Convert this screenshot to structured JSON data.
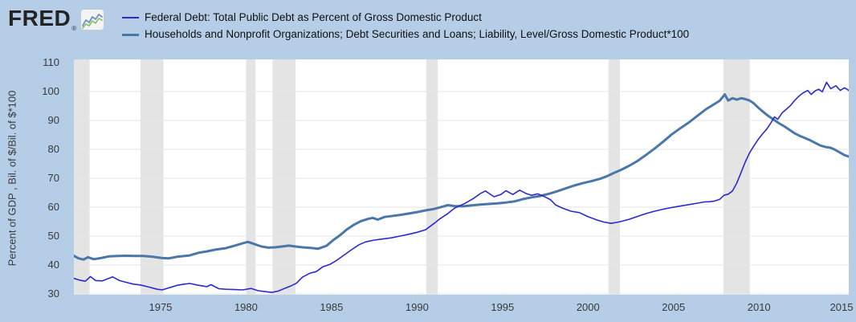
{
  "header": {
    "logo_text": "FRED",
    "registered_mark": "®"
  },
  "legend": [
    {
      "label": "Federal Debt: Total Public Debt as Percent of Gross Domestic Product"
    },
    {
      "label": "Households and Nonprofit Organizations; Debt Securities and Loans; Liability, Level/Gross Domestic Product*100"
    }
  ],
  "y_axis": {
    "title": "Percent of GDP , Bil. of $/Bil. of $*100",
    "ticks": [
      110,
      100,
      90,
      80,
      70,
      60,
      50,
      40,
      30
    ]
  },
  "x_axis": {
    "ticks": [
      1975,
      1980,
      1985,
      1990,
      1995,
      2000,
      2005,
      2010,
      2015
    ]
  },
  "colors": {
    "background": "#b5cde6",
    "plot_background": "#ffffff",
    "gridline": "#e6e6e6",
    "recession_band": "#e4e4e4",
    "axis_tick": "#c9ced6",
    "axis_text": "#3a3a3a",
    "federal_line": "#2a2ad2",
    "households_line": "#4a77a9"
  },
  "chart_data": {
    "type": "line",
    "title": "",
    "xlabel": "",
    "ylabel": "Percent of GDP , Bil. of $/Bil. of $*100",
    "x_domain": [
      1969.93,
      2015.25
    ],
    "y_domain": [
      30,
      110
    ],
    "x_ticks": [
      1975,
      1980,
      1985,
      1990,
      1995,
      2000,
      2005,
      2010,
      2015
    ],
    "y_ticks": [
      110,
      100,
      90,
      80,
      70,
      60,
      50,
      40,
      30
    ],
    "grid": true,
    "legend_position": "top-left",
    "grid_color": "#e6e6e6",
    "recession_color": "#e4e4e4",
    "tick_color": "#c9ced6",
    "recessions": [
      [
        1969.93,
        1970.85
      ],
      [
        1973.83,
        1975.17
      ],
      [
        1980.0,
        1980.55
      ],
      [
        1981.55,
        1982.9
      ],
      [
        1990.54,
        1991.21
      ],
      [
        2001.2,
        2001.87
      ],
      [
        2007.92,
        2009.46
      ]
    ],
    "series": [
      {
        "name": "Federal Debt: Total Public Debt as Percent of Gross Domestic Product",
        "color": "#2a2ad2",
        "width": 1.6,
        "points": [
          [
            1969.93,
            35.4
          ],
          [
            1970.3,
            34.7
          ],
          [
            1970.6,
            34.4
          ],
          [
            1970.9,
            36.0
          ],
          [
            1971.2,
            34.6
          ],
          [
            1971.6,
            34.5
          ],
          [
            1971.9,
            35.2
          ],
          [
            1972.2,
            35.9
          ],
          [
            1972.6,
            34.6
          ],
          [
            1973.0,
            34.0
          ],
          [
            1973.4,
            33.4
          ],
          [
            1973.8,
            33.1
          ],
          [
            1974.3,
            32.4
          ],
          [
            1974.8,
            31.6
          ],
          [
            1975.1,
            31.4
          ],
          [
            1975.5,
            32.1
          ],
          [
            1976.0,
            33.0
          ],
          [
            1976.4,
            33.4
          ],
          [
            1976.7,
            33.6
          ],
          [
            1977.2,
            33.0
          ],
          [
            1977.7,
            32.5
          ],
          [
            1977.95,
            33.2
          ],
          [
            1978.4,
            31.8
          ],
          [
            1978.8,
            31.6
          ],
          [
            1979.3,
            31.5
          ],
          [
            1979.8,
            31.4
          ],
          [
            1980.3,
            31.9
          ],
          [
            1980.7,
            31.1
          ],
          [
            1981.1,
            30.8
          ],
          [
            1981.5,
            30.5
          ],
          [
            1981.9,
            31.0
          ],
          [
            1982.25,
            31.9
          ],
          [
            1982.6,
            32.7
          ],
          [
            1982.95,
            33.7
          ],
          [
            1983.3,
            35.8
          ],
          [
            1983.75,
            37.2
          ],
          [
            1984.1,
            37.7
          ],
          [
            1984.5,
            39.4
          ],
          [
            1984.9,
            40.2
          ],
          [
            1985.3,
            41.6
          ],
          [
            1985.7,
            43.3
          ],
          [
            1986.1,
            45.0
          ],
          [
            1986.6,
            47.0
          ],
          [
            1987.0,
            48.0
          ],
          [
            1987.5,
            48.6
          ],
          [
            1988.0,
            49.0
          ],
          [
            1988.5,
            49.4
          ],
          [
            1989.0,
            50.0
          ],
          [
            1989.5,
            50.6
          ],
          [
            1990.0,
            51.3
          ],
          [
            1990.5,
            52.2
          ],
          [
            1991.0,
            54.4
          ],
          [
            1991.3,
            55.8
          ],
          [
            1991.8,
            57.8
          ],
          [
            1992.2,
            59.7
          ],
          [
            1992.8,
            61.3
          ],
          [
            1993.3,
            63.0
          ],
          [
            1993.7,
            64.7
          ],
          [
            1994.0,
            65.6
          ],
          [
            1994.5,
            63.6
          ],
          [
            1994.9,
            64.4
          ],
          [
            1995.2,
            65.7
          ],
          [
            1995.6,
            64.4
          ],
          [
            1996.0,
            65.9
          ],
          [
            1996.35,
            64.8
          ],
          [
            1996.7,
            64.1
          ],
          [
            1997.05,
            64.6
          ],
          [
            1997.4,
            63.8
          ],
          [
            1997.8,
            62.6
          ],
          [
            1998.1,
            60.8
          ],
          [
            1998.5,
            59.7
          ],
          [
            1999.0,
            58.6
          ],
          [
            1999.5,
            58.1
          ],
          [
            2000.0,
            56.7
          ],
          [
            2000.5,
            55.6
          ],
          [
            2000.9,
            54.9
          ],
          [
            2001.35,
            54.4
          ],
          [
            2001.9,
            55.0
          ],
          [
            2002.4,
            55.8
          ],
          [
            2002.9,
            56.8
          ],
          [
            2003.4,
            57.8
          ],
          [
            2003.9,
            58.6
          ],
          [
            2004.4,
            59.3
          ],
          [
            2004.9,
            59.9
          ],
          [
            2005.4,
            60.4
          ],
          [
            2005.9,
            60.9
          ],
          [
            2006.4,
            61.4
          ],
          [
            2006.8,
            61.8
          ],
          [
            2007.1,
            61.9
          ],
          [
            2007.4,
            62.1
          ],
          [
            2007.7,
            62.7
          ],
          [
            2007.95,
            64.1
          ],
          [
            2008.2,
            64.5
          ],
          [
            2008.45,
            65.6
          ],
          [
            2008.7,
            68.3
          ],
          [
            2008.95,
            72.0
          ],
          [
            2009.2,
            75.7
          ],
          [
            2009.45,
            78.8
          ],
          [
            2009.7,
            81.2
          ],
          [
            2009.95,
            83.4
          ],
          [
            2010.2,
            85.3
          ],
          [
            2010.45,
            87.0
          ],
          [
            2010.7,
            89.2
          ],
          [
            2010.9,
            91.2
          ],
          [
            2011.1,
            90.4
          ],
          [
            2011.35,
            92.6
          ],
          [
            2011.6,
            93.9
          ],
          [
            2011.85,
            95.2
          ],
          [
            2012.1,
            97.0
          ],
          [
            2012.35,
            98.5
          ],
          [
            2012.6,
            99.6
          ],
          [
            2012.85,
            100.4
          ],
          [
            2013.05,
            99.0
          ],
          [
            2013.3,
            100.3
          ],
          [
            2013.5,
            100.8
          ],
          [
            2013.7,
            99.9
          ],
          [
            2013.95,
            103.2
          ],
          [
            2014.2,
            101.0
          ],
          [
            2014.5,
            102.0
          ],
          [
            2014.75,
            100.4
          ],
          [
            2015.0,
            101.3
          ],
          [
            2015.25,
            100.4
          ]
        ]
      },
      {
        "name": "Households and Nonprofit Organizations; Debt Securities and Loans; Liability, Level/Gross Domestic Product*100",
        "color": "#4a77a9",
        "width": 3,
        "points": [
          [
            1969.93,
            43.2
          ],
          [
            1970.2,
            42.3
          ],
          [
            1970.5,
            41.9
          ],
          [
            1970.75,
            42.7
          ],
          [
            1971.1,
            42.0
          ],
          [
            1971.5,
            42.4
          ],
          [
            1972.0,
            43.0
          ],
          [
            1972.5,
            43.1
          ],
          [
            1973.0,
            43.2
          ],
          [
            1973.5,
            43.1
          ],
          [
            1974.0,
            43.1
          ],
          [
            1974.5,
            42.9
          ],
          [
            1975.1,
            42.4
          ],
          [
            1975.5,
            42.3
          ],
          [
            1976.0,
            42.9
          ],
          [
            1976.7,
            43.3
          ],
          [
            1977.2,
            44.2
          ],
          [
            1977.7,
            44.7
          ],
          [
            1978.2,
            45.3
          ],
          [
            1978.8,
            45.8
          ],
          [
            1979.3,
            46.6
          ],
          [
            1979.8,
            47.5
          ],
          [
            1980.1,
            48.0
          ],
          [
            1980.5,
            47.2
          ],
          [
            1980.9,
            46.4
          ],
          [
            1981.3,
            46.0
          ],
          [
            1981.7,
            46.1
          ],
          [
            1982.1,
            46.4
          ],
          [
            1982.5,
            46.7
          ],
          [
            1982.9,
            46.4
          ],
          [
            1983.3,
            46.1
          ],
          [
            1983.8,
            45.9
          ],
          [
            1984.2,
            45.6
          ],
          [
            1984.7,
            46.6
          ],
          [
            1985.1,
            48.6
          ],
          [
            1985.5,
            50.3
          ],
          [
            1985.9,
            52.3
          ],
          [
            1986.3,
            53.9
          ],
          [
            1986.7,
            55.1
          ],
          [
            1987.1,
            55.9
          ],
          [
            1987.4,
            56.3
          ],
          [
            1987.7,
            55.7
          ],
          [
            1988.1,
            56.6
          ],
          [
            1988.6,
            57.0
          ],
          [
            1989.1,
            57.4
          ],
          [
            1989.6,
            57.9
          ],
          [
            1990.0,
            58.3
          ],
          [
            1990.5,
            58.9
          ],
          [
            1991.0,
            59.4
          ],
          [
            1991.5,
            60.2
          ],
          [
            1991.8,
            60.7
          ],
          [
            1992.2,
            60.4
          ],
          [
            1992.7,
            60.3
          ],
          [
            1993.2,
            60.6
          ],
          [
            1993.7,
            60.9
          ],
          [
            1994.2,
            61.1
          ],
          [
            1994.7,
            61.3
          ],
          [
            1995.2,
            61.6
          ],
          [
            1995.7,
            62.0
          ],
          [
            1996.2,
            62.8
          ],
          [
            1996.7,
            63.4
          ],
          [
            1997.2,
            63.9
          ],
          [
            1997.7,
            64.6
          ],
          [
            1998.2,
            65.5
          ],
          [
            1998.7,
            66.5
          ],
          [
            1999.2,
            67.5
          ],
          [
            1999.7,
            68.3
          ],
          [
            2000.2,
            69.0
          ],
          [
            2000.7,
            69.8
          ],
          [
            2001.1,
            70.7
          ],
          [
            2001.5,
            71.8
          ],
          [
            2001.9,
            72.8
          ],
          [
            2002.4,
            74.3
          ],
          [
            2002.9,
            76.0
          ],
          [
            2003.4,
            78.1
          ],
          [
            2003.9,
            80.3
          ],
          [
            2004.4,
            82.7
          ],
          [
            2004.9,
            85.2
          ],
          [
            2005.4,
            87.3
          ],
          [
            2005.9,
            89.3
          ],
          [
            2006.4,
            91.6
          ],
          [
            2006.9,
            93.9
          ],
          [
            2007.4,
            95.7
          ],
          [
            2007.7,
            96.8
          ],
          [
            2008.0,
            99.0
          ],
          [
            2008.2,
            96.9
          ],
          [
            2008.45,
            97.7
          ],
          [
            2008.7,
            97.2
          ],
          [
            2008.95,
            97.7
          ],
          [
            2009.2,
            97.4
          ],
          [
            2009.45,
            96.9
          ],
          [
            2009.7,
            95.9
          ],
          [
            2010.0,
            94.2
          ],
          [
            2010.3,
            92.7
          ],
          [
            2010.6,
            91.3
          ],
          [
            2010.9,
            90.1
          ],
          [
            2011.2,
            88.9
          ],
          [
            2011.5,
            87.9
          ],
          [
            2011.8,
            86.7
          ],
          [
            2012.1,
            85.5
          ],
          [
            2012.4,
            84.6
          ],
          [
            2012.7,
            83.9
          ],
          [
            2013.0,
            83.1
          ],
          [
            2013.3,
            82.2
          ],
          [
            2013.6,
            81.3
          ],
          [
            2013.9,
            80.8
          ],
          [
            2014.15,
            80.6
          ],
          [
            2014.4,
            80.0
          ],
          [
            2014.7,
            79.0
          ],
          [
            2015.0,
            78.0
          ],
          [
            2015.25,
            77.5
          ]
        ]
      }
    ]
  }
}
